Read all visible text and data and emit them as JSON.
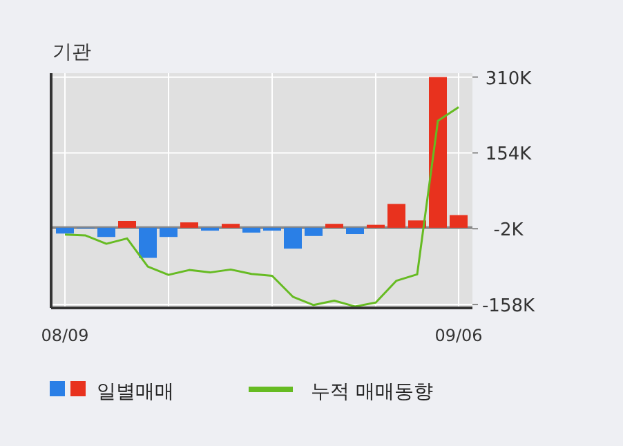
{
  "chart_data": {
    "type": "bar",
    "title": "기관",
    "categories": [
      "08/09",
      null,
      null,
      null,
      null,
      null,
      null,
      null,
      null,
      null,
      null,
      null,
      null,
      null,
      null,
      null,
      null,
      null,
      null,
      "09/06"
    ],
    "series": [
      {
        "name": "일별매매",
        "values": [
          -12,
          -1,
          -19,
          14,
          -62,
          -19,
          11,
          -6,
          8,
          -10,
          -6,
          -43,
          -17,
          8,
          -13,
          6,
          49,
          15,
          310,
          26
        ],
        "colors": [
          "#2a7fe6",
          "#2a7fe6",
          "#2a7fe6",
          "#e8321e",
          "#2a7fe6",
          "#2a7fe6",
          "#e8321e",
          "#2a7fe6",
          "#e8321e",
          "#2a7fe6",
          "#2a7fe6",
          "#2a7fe6",
          "#2a7fe6",
          "#e8321e",
          "#2a7fe6",
          "#e8321e",
          "#e8321e",
          "#e8321e",
          "#e8321e",
          "#e8321e"
        ]
      },
      {
        "name": "누적 매매동향",
        "type": "line",
        "color": "#66bb22",
        "values": [
          -14,
          -16,
          -33,
          -22,
          -80,
          -97,
          -87,
          -92,
          -86,
          -95,
          -99,
          -142,
          -159,
          -150,
          -162,
          -154,
          -109,
          -96,
          220,
          248
        ]
      }
    ],
    "ylim": [
      -165,
      318
    ],
    "yticks": [
      {
        "value": 310,
        "label": "310K"
      },
      {
        "value": 154,
        "label": "154K"
      },
      {
        "value": -2,
        "label": "-2K"
      },
      {
        "value": -158,
        "label": "-158K"
      }
    ],
    "grid": true,
    "legend": "bottom"
  }
}
